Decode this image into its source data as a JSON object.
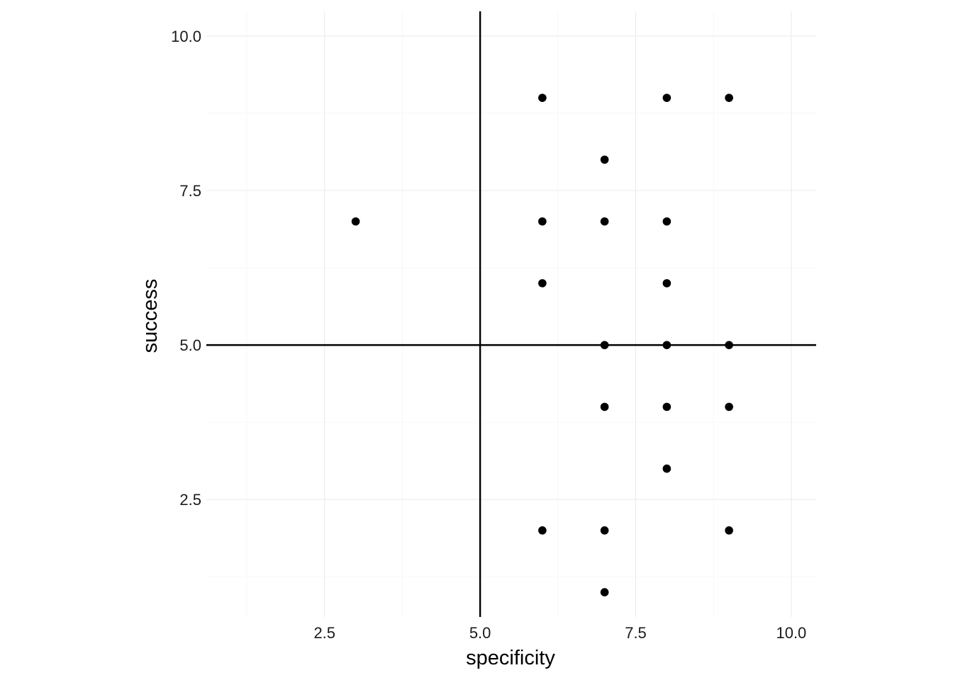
{
  "chart_data": {
    "type": "scatter",
    "xlabel": "specificity",
    "ylabel": "success",
    "xlim": [
      0.6,
      10.4
    ],
    "ylim": [
      0.6,
      10.4
    ],
    "x_ticks": [
      2.5,
      5.0,
      7.5,
      10.0
    ],
    "y_ticks": [
      2.5,
      5.0,
      7.5,
      10.0
    ],
    "x_tick_labels": [
      "2.5",
      "5.0",
      "7.5",
      "10.0"
    ],
    "y_tick_labels": [
      "2.5",
      "5.0",
      "7.5",
      "10.0"
    ],
    "x_minor_ticks": [
      1.25,
      3.75,
      6.25,
      8.75
    ],
    "y_minor_ticks": [
      1.25,
      3.75,
      6.25,
      8.75
    ],
    "reference_lines": {
      "vertical_x": 5,
      "horizontal_y": 5
    },
    "grid": true,
    "point_color": "#000000",
    "points": [
      {
        "x": 3,
        "y": 7
      },
      {
        "x": 6,
        "y": 9
      },
      {
        "x": 6,
        "y": 7
      },
      {
        "x": 6,
        "y": 6
      },
      {
        "x": 6,
        "y": 2
      },
      {
        "x": 7,
        "y": 8
      },
      {
        "x": 7,
        "y": 7
      },
      {
        "x": 7,
        "y": 5
      },
      {
        "x": 7,
        "y": 4
      },
      {
        "x": 7,
        "y": 2
      },
      {
        "x": 7,
        "y": 1
      },
      {
        "x": 8,
        "y": 9
      },
      {
        "x": 8,
        "y": 7
      },
      {
        "x": 8,
        "y": 6
      },
      {
        "x": 8,
        "y": 5
      },
      {
        "x": 8,
        "y": 4
      },
      {
        "x": 8,
        "y": 3
      },
      {
        "x": 9,
        "y": 9
      },
      {
        "x": 9,
        "y": 5
      },
      {
        "x": 9,
        "y": 4
      },
      {
        "x": 9,
        "y": 2
      }
    ]
  }
}
